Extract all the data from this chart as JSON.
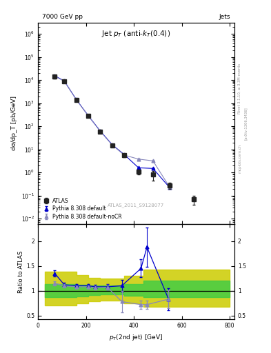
{
  "title_top_left": "7000 GeV pp",
  "title_top_right": "Jets",
  "plot_title": "Jet p_{T} (anti-k_{T}(0.4))",
  "xlabel": "p_{T}(2nd jet) [GeV]",
  "ylabel_main": "dσ/dp_T [pb/GeV]",
  "ylabel_ratio": "Ratio to ATLAS",
  "watermark": "ATLAS_2011_S9128077",
  "right_label_1": "Rivet 3.1.10, ≥ 3.3M events",
  "right_label_2": "[arXiv:1306.3436]",
  "right_label_3": "mcplots.cern.ch",
  "atlas_x": [
    70,
    110,
    160,
    210,
    260,
    310,
    360,
    420,
    480,
    550,
    650
  ],
  "atlas_y": [
    14000,
    9000,
    1400,
    280,
    60,
    15,
    5.5,
    1.1,
    0.8,
    0.27,
    0.07
  ],
  "atlas_yerr_lo": [
    2000,
    800,
    150,
    30,
    7,
    2.0,
    0.8,
    0.25,
    0.35,
    0.08,
    0.03
  ],
  "atlas_yerr_hi": [
    2000,
    800,
    150,
    30,
    7,
    2.0,
    0.8,
    0.25,
    0.35,
    0.08,
    0.03
  ],
  "pythia_x": [
    70,
    110,
    160,
    210,
    260,
    310,
    360,
    420,
    480,
    550
  ],
  "pythia_y": [
    15500,
    9200,
    1450,
    290,
    63,
    16,
    6.0,
    1.6,
    1.5,
    0.22
  ],
  "pythia_yerr": [
    200,
    150,
    30,
    5,
    1.5,
    0.4,
    0.2,
    0.05,
    0.08,
    0.01
  ],
  "pythia_nocr_x": [
    70,
    110,
    160,
    210,
    260,
    310,
    360,
    420,
    480,
    550
  ],
  "pythia_nocr_y": [
    14800,
    9000,
    1420,
    285,
    61,
    15.5,
    5.7,
    3.8,
    3.2,
    0.23
  ],
  "pythia_nocr_yerr": [
    200,
    150,
    30,
    5,
    1.5,
    0.4,
    0.2,
    0.1,
    0.1,
    0.01
  ],
  "ratio_pythia_x": [
    70,
    110,
    160,
    210,
    240,
    290,
    350,
    430,
    455,
    545
  ],
  "ratio_pythia_y": [
    1.35,
    1.12,
    1.1,
    1.1,
    1.08,
    1.08,
    1.1,
    1.45,
    1.88,
    0.83
  ],
  "ratio_pythia_yerr_lo": [
    0.06,
    0.04,
    0.03,
    0.03,
    0.04,
    0.05,
    0.12,
    0.18,
    0.4,
    0.22
  ],
  "ratio_pythia_yerr_hi": [
    0.06,
    0.04,
    0.03,
    0.03,
    0.04,
    0.05,
    0.12,
    0.18,
    0.4,
    0.22
  ],
  "ratio_nocr_x": [
    70,
    110,
    160,
    210,
    240,
    290,
    350,
    430,
    455,
    545
  ],
  "ratio_nocr_y": [
    1.15,
    1.1,
    1.08,
    1.08,
    1.06,
    1.07,
    0.78,
    0.72,
    0.72,
    0.83
  ],
  "ratio_nocr_yerr_lo": [
    0.04,
    0.03,
    0.03,
    0.03,
    0.04,
    0.05,
    0.22,
    0.08,
    0.08,
    0.18
  ],
  "ratio_nocr_yerr_hi": [
    0.04,
    0.03,
    0.03,
    0.03,
    0.04,
    0.05,
    0.22,
    0.08,
    0.08,
    0.18
  ],
  "band_edges": [
    30,
    110,
    160,
    210,
    260,
    310,
    360,
    440,
    540,
    800
  ],
  "band_green_lo": [
    0.87,
    0.87,
    0.89,
    0.91,
    0.92,
    0.92,
    0.9,
    0.87,
    0.87,
    0.87
  ],
  "band_green_hi": [
    1.14,
    1.14,
    1.12,
    1.1,
    1.1,
    1.1,
    1.14,
    1.2,
    1.2,
    1.2
  ],
  "band_yellow_lo": [
    0.7,
    0.7,
    0.74,
    0.78,
    0.8,
    0.8,
    0.75,
    0.68,
    0.68,
    0.68
  ],
  "band_yellow_hi": [
    1.38,
    1.38,
    1.32,
    1.26,
    1.24,
    1.24,
    1.3,
    1.42,
    1.42,
    1.42
  ],
  "xlim": [
    0,
    820
  ],
  "ylim_main": [
    0.006,
    3000000
  ],
  "ylim_ratio": [
    0.42,
    2.35
  ],
  "yticks_ratio": [
    0.5,
    1.0,
    1.5,
    2.0
  ],
  "ytick_labels_ratio": [
    "0.5",
    "1",
    "1.5",
    "2"
  ],
  "color_atlas": "#222222",
  "color_pythia": "#0000cc",
  "color_pythia_nocr": "#8888bb",
  "color_band_green": "#44cc44",
  "color_band_yellow": "#cccc00",
  "bg": "#ffffff"
}
